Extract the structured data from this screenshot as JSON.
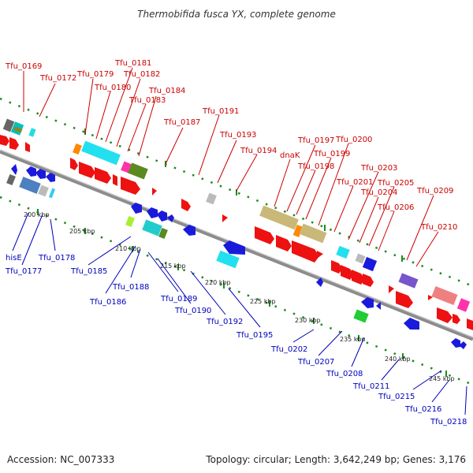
{
  "title": "Thermobifida fusca YX, complete genome",
  "footer": {
    "accession": "Accession: NC_007333",
    "summary": "Topology: circular; Length: 3,642,249 bp; Genes: 3,176"
  },
  "colors": {
    "forward": "#ee1111",
    "reverse": "#1a1add",
    "label_top": "#cc0000",
    "label_bottom": "#0000bb",
    "backbone": "#8c8c8c",
    "tick": "#1f8a1f"
  },
  "kbp_ticks": [
    {
      "label": "200 kbp"
    },
    {
      "label": "205 kbp"
    },
    {
      "label": "210 kbp"
    },
    {
      "label": "215 kbp"
    },
    {
      "label": "220 kbp"
    },
    {
      "label": "225 kbp"
    },
    {
      "label": "230 kbp"
    },
    {
      "label": "235 kbp"
    },
    {
      "label": "240 kbp"
    },
    {
      "label": "245 kbp"
    }
  ],
  "top_labels": [
    {
      "text": "Tfu_0169"
    },
    {
      "text": "Tfu_0172"
    },
    {
      "text": "Tfu_0179"
    },
    {
      "text": "Tfu_0180"
    },
    {
      "text": "Tfu_0181"
    },
    {
      "text": "Tfu_0182"
    },
    {
      "text": "Tfu_0183"
    },
    {
      "text": "Tfu_0184"
    },
    {
      "text": "Tfu_0187"
    },
    {
      "text": "Tfu_0191"
    },
    {
      "text": "Tfu_0193"
    },
    {
      "text": "Tfu_0194"
    },
    {
      "text": "dnaK"
    },
    {
      "text": "Tfu_0197"
    },
    {
      "text": "Tfu_0198"
    },
    {
      "text": "Tfu_0199"
    },
    {
      "text": "Tfu_0200"
    },
    {
      "text": "Tfu_0201"
    },
    {
      "text": "Tfu_0203"
    },
    {
      "text": "Tfu_0204"
    },
    {
      "text": "Tfu_0205"
    },
    {
      "text": "Tfu_0206"
    },
    {
      "text": "Tfu_0209"
    },
    {
      "text": "Tfu_0210"
    }
  ],
  "bottom_labels": [
    {
      "text": "hisE"
    },
    {
      "text": "Tfu_0177"
    },
    {
      "text": "Tfu_0178"
    },
    {
      "text": "Tfu_0185"
    },
    {
      "text": "Tfu_0186"
    },
    {
      "text": "Tfu_0188"
    },
    {
      "text": "Tfu_0189"
    },
    {
      "text": "Tfu_0190"
    },
    {
      "text": "Tfu_0192"
    },
    {
      "text": "Tfu_0195"
    },
    {
      "text": "Tfu_0202"
    },
    {
      "text": "Tfu_0207"
    },
    {
      "text": "Tfu_0208"
    },
    {
      "text": "Tfu_0211"
    },
    {
      "text": "Tfu_0215"
    },
    {
      "text": "Tfu_0216"
    },
    {
      "text": "Tfu_0218"
    }
  ]
}
